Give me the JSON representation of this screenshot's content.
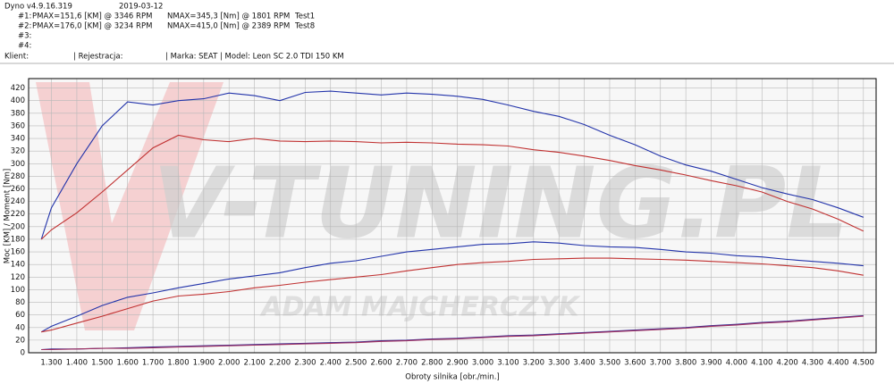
{
  "header": {
    "app": "Dyno v4.9.16.319",
    "date": "2019-03-12",
    "runs": [
      {
        "label": "#1:",
        "pmax": "PMAX=151,6 [KM] @ 3346 RPM",
        "nmax": "NMAX=345,3 [Nm] @ 1801 RPM",
        "name": "Test1"
      },
      {
        "label": "#2:",
        "pmax": "PMAX=176,0 [KM] @ 3234 RPM",
        "nmax": "NMAX=415,0 [Nm] @ 2389 RPM",
        "name": "Test8"
      },
      {
        "label": "#3:"
      },
      {
        "label": "#4:"
      }
    ],
    "client": "Klient:",
    "registration": "| Rejestracja:",
    "vehicle": "| Marka: SEAT | Model: Leon SC 2.0 TDI 150 KM"
  },
  "chart_data": {
    "type": "line",
    "watermark": [
      "V-TUNING.PL",
      "ADAM MAJCHERCZYK"
    ],
    "y_label": "Moc [KM] / Moment [Nm]",
    "x_label": "Obroty silnika [obr./min.]",
    "x": [
      1260,
      1300,
      1400,
      1500,
      1600,
      1700,
      1800,
      1900,
      2000,
      2100,
      2200,
      2300,
      2400,
      2500,
      2600,
      2700,
      2800,
      2900,
      3000,
      3100,
      3200,
      3300,
      3400,
      3500,
      3600,
      3700,
      3800,
      3900,
      4000,
      4100,
      4200,
      4300,
      4400,
      4500
    ],
    "series": [
      {
        "color": "#2233aa",
        "values": [
          180,
          230,
          300,
          360,
          398,
          393,
          400,
          403,
          412,
          408,
          400,
          413,
          415,
          412,
          409,
          412,
          410,
          407,
          402,
          393,
          383,
          375,
          362,
          345,
          330,
          312,
          298,
          288,
          275,
          262,
          252,
          243,
          230,
          215
        ]
      },
      {
        "color": "#c03030",
        "values": [
          180,
          195,
          222,
          255,
          290,
          325,
          345,
          338,
          335,
          340,
          336,
          335,
          336,
          335,
          333,
          334,
          333,
          331,
          330,
          328,
          322,
          318,
          312,
          305,
          297,
          290,
          282,
          273,
          265,
          255,
          240,
          228,
          212,
          193
        ]
      },
      {
        "color": "#2233aa",
        "values": [
          33,
          42,
          58,
          75,
          88,
          95,
          103,
          110,
          117,
          122,
          127,
          135,
          142,
          146,
          153,
          160,
          164,
          168,
          172,
          173,
          176,
          174,
          170,
          168,
          167,
          164,
          160,
          158,
          154,
          152,
          148,
          145,
          142,
          138
        ]
      },
      {
        "color": "#c03030",
        "values": [
          33,
          36,
          47,
          58,
          70,
          82,
          90,
          93,
          97,
          103,
          107,
          112,
          116,
          120,
          124,
          130,
          135,
          140,
          143,
          145,
          148,
          149,
          150,
          150,
          149,
          148,
          147,
          145,
          143,
          141,
          138,
          135,
          130,
          123
        ]
      },
      {
        "color": "#3a2a90",
        "values": [
          5,
          6,
          6,
          7,
          8,
          9,
          10,
          11,
          12,
          13,
          14,
          15,
          16,
          17,
          19,
          20,
          22,
          23,
          25,
          27,
          28,
          30,
          32,
          34,
          36,
          38,
          40,
          43,
          45,
          48,
          50,
          53,
          56,
          59
        ]
      },
      {
        "color": "#a03060",
        "values": [
          5,
          5,
          6,
          7,
          7,
          8,
          9,
          10,
          11,
          12,
          13,
          14,
          15,
          16,
          18,
          19,
          21,
          22,
          24,
          26,
          27,
          29,
          31,
          33,
          35,
          37,
          39,
          42,
          44,
          47,
          49,
          52,
          55,
          58
        ]
      }
    ],
    "xlim": [
      1210,
      4550
    ],
    "ylim": [
      0,
      435
    ],
    "xticks": [
      {
        "value": 1300,
        "label": "1.300"
      },
      {
        "value": 1400,
        "label": "1.400"
      },
      {
        "value": 1500,
        "label": "1.500"
      },
      {
        "value": 1600,
        "label": "1.600"
      },
      {
        "value": 1700,
        "label": "1.700"
      },
      {
        "value": 1800,
        "label": "1.800"
      },
      {
        "value": 1900,
        "label": "1.900"
      },
      {
        "value": 2000,
        "label": "2.000"
      },
      {
        "value": 2100,
        "label": "2.100"
      },
      {
        "value": 2200,
        "label": "2.200"
      },
      {
        "value": 2300,
        "label": "2.300"
      },
      {
        "value": 2400,
        "label": "2.400"
      },
      {
        "value": 2500,
        "label": "2.500"
      },
      {
        "value": 2600,
        "label": "2.600"
      },
      {
        "value": 2700,
        "label": "2.700"
      },
      {
        "value": 2800,
        "label": "2.800"
      },
      {
        "value": 2900,
        "label": "2.900"
      },
      {
        "value": 3000,
        "label": "3.000"
      },
      {
        "value": 3100,
        "label": "3.100"
      },
      {
        "value": 3200,
        "label": "3.200"
      },
      {
        "value": 3300,
        "label": "3.300"
      },
      {
        "value": 3400,
        "label": "3.400"
      },
      {
        "value": 3500,
        "label": "3.500"
      },
      {
        "value": 3600,
        "label": "3.600"
      },
      {
        "value": 3700,
        "label": "3.700"
      },
      {
        "value": 3800,
        "label": "3.800"
      },
      {
        "value": 3900,
        "label": "3.900"
      },
      {
        "value": 4000,
        "label": "4.000"
      },
      {
        "value": 4100,
        "label": "4.100"
      },
      {
        "value": 4200,
        "label": "4.200"
      },
      {
        "value": 4300,
        "label": "4.300"
      },
      {
        "value": 4400,
        "label": "4.400"
      },
      {
        "value": 4500,
        "label": "4.500"
      }
    ],
    "yticks": [
      0,
      20,
      40,
      60,
      80,
      100,
      120,
      140,
      160,
      180,
      200,
      220,
      240,
      260,
      280,
      300,
      320,
      340,
      360,
      380,
      400,
      420
    ],
    "grid": true
  }
}
